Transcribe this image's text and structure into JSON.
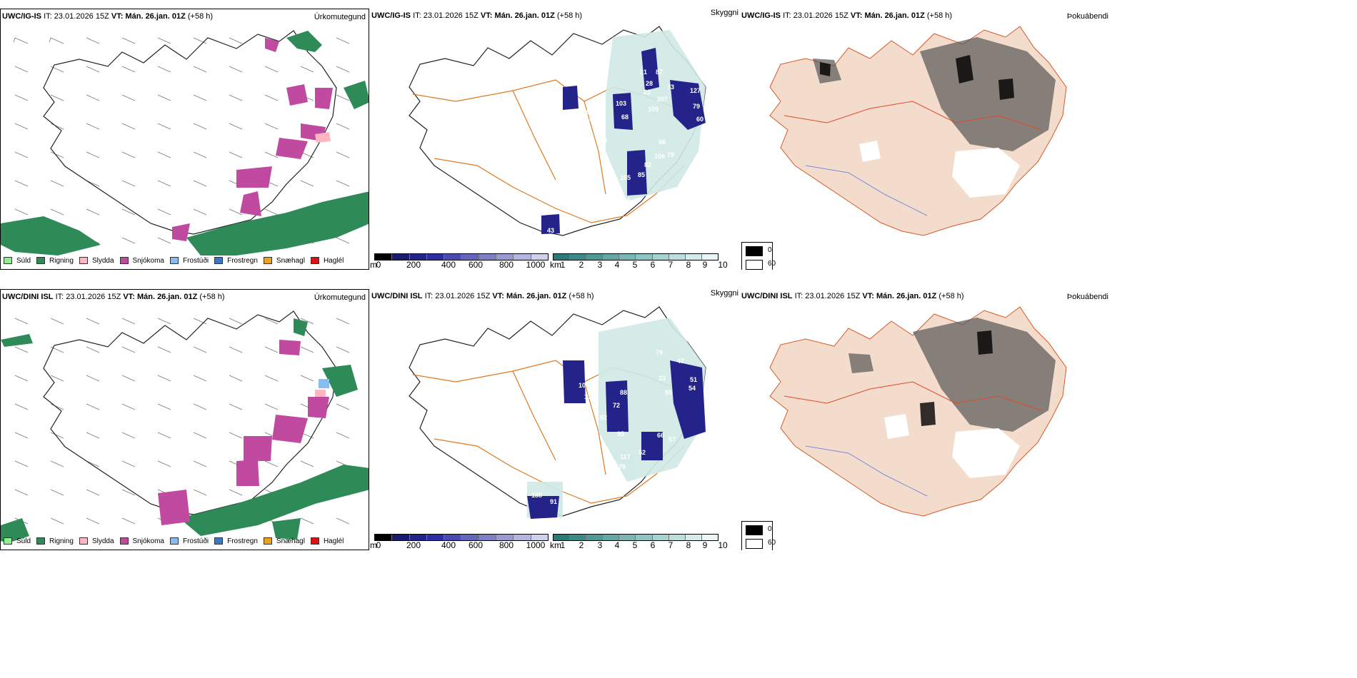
{
  "rows": [
    {
      "model": "UWC/IG-IS",
      "it_label": "IT:",
      "it": "23.01.2026 15Z",
      "vt_label": "VT:",
      "vt": "Mán. 26.jan. 01Z",
      "lead": "(+58 h)"
    },
    {
      "model": "UWC/DINI ISL",
      "it_label": "IT:",
      "it": "23.01.2026 15Z",
      "vt_label": "VT:",
      "vt": "Mán. 26.jan. 01Z",
      "lead": "(+58 h)"
    }
  ],
  "panel_titles": {
    "precip": "Úrkomutegund",
    "visibility": "Skyggni",
    "fog": "Þokuábendi"
  },
  "precip_legend": [
    {
      "label": "Súld",
      "color": "#90ee90"
    },
    {
      "label": "Rigning",
      "color": "#2e8b57"
    },
    {
      "label": "Slydda",
      "color": "#ffb6c1"
    },
    {
      "label": "Snjókoma",
      "color": "#c04aa0"
    },
    {
      "label": "Frostúði",
      "color": "#87bdf0"
    },
    {
      "label": "Frostregn",
      "color": "#3a78c8"
    },
    {
      "label": "Snæhagl",
      "color": "#f0a020"
    },
    {
      "label": "Haglél",
      "color": "#e01010"
    }
  ],
  "meters_bar": {
    "unit": "m",
    "ticks": [
      "0",
      "200",
      "400",
      "600",
      "800",
      "1000"
    ],
    "colors": [
      "#000000",
      "#1a1a6e",
      "#23238a",
      "#2e2ea3",
      "#4a4ab0",
      "#6565bb",
      "#7f7fc6",
      "#9a9ad2",
      "#b5b5de",
      "#d0d0ea"
    ]
  },
  "km_bar": {
    "unit": "km",
    "ticks": [
      "1",
      "2",
      "3",
      "4",
      "5",
      "6",
      "7",
      "8",
      "9",
      "10"
    ],
    "colors": [
      "#2a7a78",
      "#3a8a87",
      "#4e9996",
      "#63a8a5",
      "#79b6b4",
      "#8fc4c2",
      "#a6d2d0",
      "#bcdfde",
      "#d3eceb",
      "#eaf6f5"
    ]
  },
  "fog_box": {
    "max": "0",
    "min": "60"
  },
  "visibility_values_top": [
    "79",
    "21",
    "87",
    "28",
    "23",
    "73",
    "127",
    "207",
    "109",
    "103",
    "29",
    "79",
    "108",
    "68",
    "60",
    "96",
    "80",
    "93",
    "106",
    "79",
    "82",
    "165",
    "85",
    "68",
    "43",
    "36"
  ],
  "visibility_values_bottom": [
    "79",
    "47",
    "100",
    "51",
    "110",
    "54",
    "88",
    "33",
    "59",
    "72",
    "82",
    "95",
    "66",
    "57",
    "117",
    "52",
    "78",
    "185",
    "91"
  ]
}
